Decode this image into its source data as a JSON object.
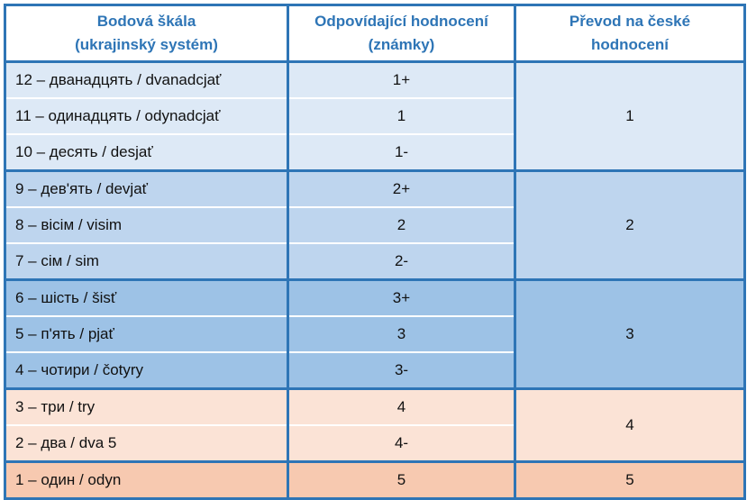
{
  "table": {
    "header": [
      [
        "Bodová škála",
        "(ukrajinský systém)"
      ],
      [
        "Odpovídající hodnocení",
        "(známky)"
      ],
      [
        "Převod na české",
        "hodnocení"
      ]
    ],
    "groups": [
      {
        "czech": "1",
        "color": "#dde9f6",
        "rows": [
          [
            "12 – дванадцять / dvanadcjať",
            "1+"
          ],
          [
            "11 – одинадцять / odynadcjať",
            "1"
          ],
          [
            "10 – десять / desjať",
            "1-"
          ]
        ]
      },
      {
        "czech": "2",
        "color": "#bed5ee",
        "rows": [
          [
            "9 – дев'ять / devjať",
            "2+"
          ],
          [
            "8 – вісім / visim",
            "2"
          ],
          [
            "7 – сім / sim",
            "2-"
          ]
        ]
      },
      {
        "czech": "3",
        "color": "#9dc2e6",
        "rows": [
          [
            "6 – шість / šisť",
            "3+"
          ],
          [
            "5 – п'ять / pjať",
            "3"
          ],
          [
            "4 – чотири / čotyry",
            "3-"
          ]
        ]
      },
      {
        "czech": "4",
        "color": "#fbe3d6",
        "rows": [
          [
            "3 – три / try",
            "4"
          ],
          [
            "2 – два / dva 5",
            "4-"
          ]
        ]
      },
      {
        "czech": "5",
        "color": "#f7c9b0",
        "rows": [
          [
            "1 – один / odyn",
            "5"
          ]
        ]
      }
    ]
  }
}
